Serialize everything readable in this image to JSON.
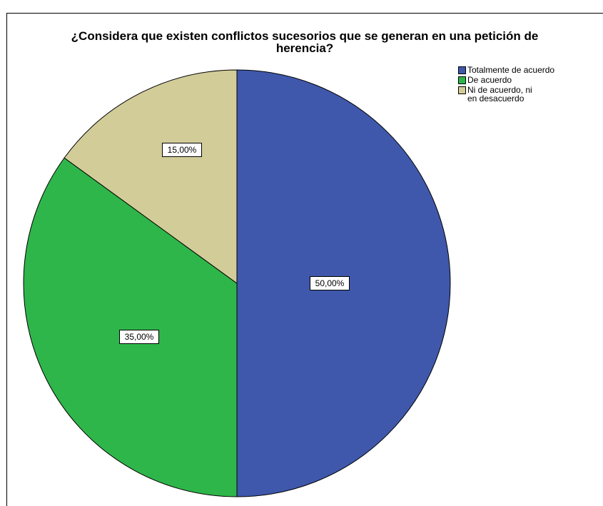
{
  "chart_data": {
    "type": "pie",
    "title_lines": [
      "¿Considera que existen conflictos sucesorios que se generan en una petición de",
      "herencia?"
    ],
    "slices": [
      {
        "name": "Totalmente de acuerdo",
        "value": 50.0,
        "label": "50,00%",
        "color": "#3f58ab"
      },
      {
        "name": "De acuerdo",
        "value": 35.0,
        "label": "35,00%",
        "color": "#2fb64a"
      },
      {
        "name": "Ni de acuerdo, ni en desacuerdo",
        "value": 15.0,
        "label": "15,00%",
        "color": "#d2cc98"
      }
    ],
    "legend_position": "top-right"
  }
}
